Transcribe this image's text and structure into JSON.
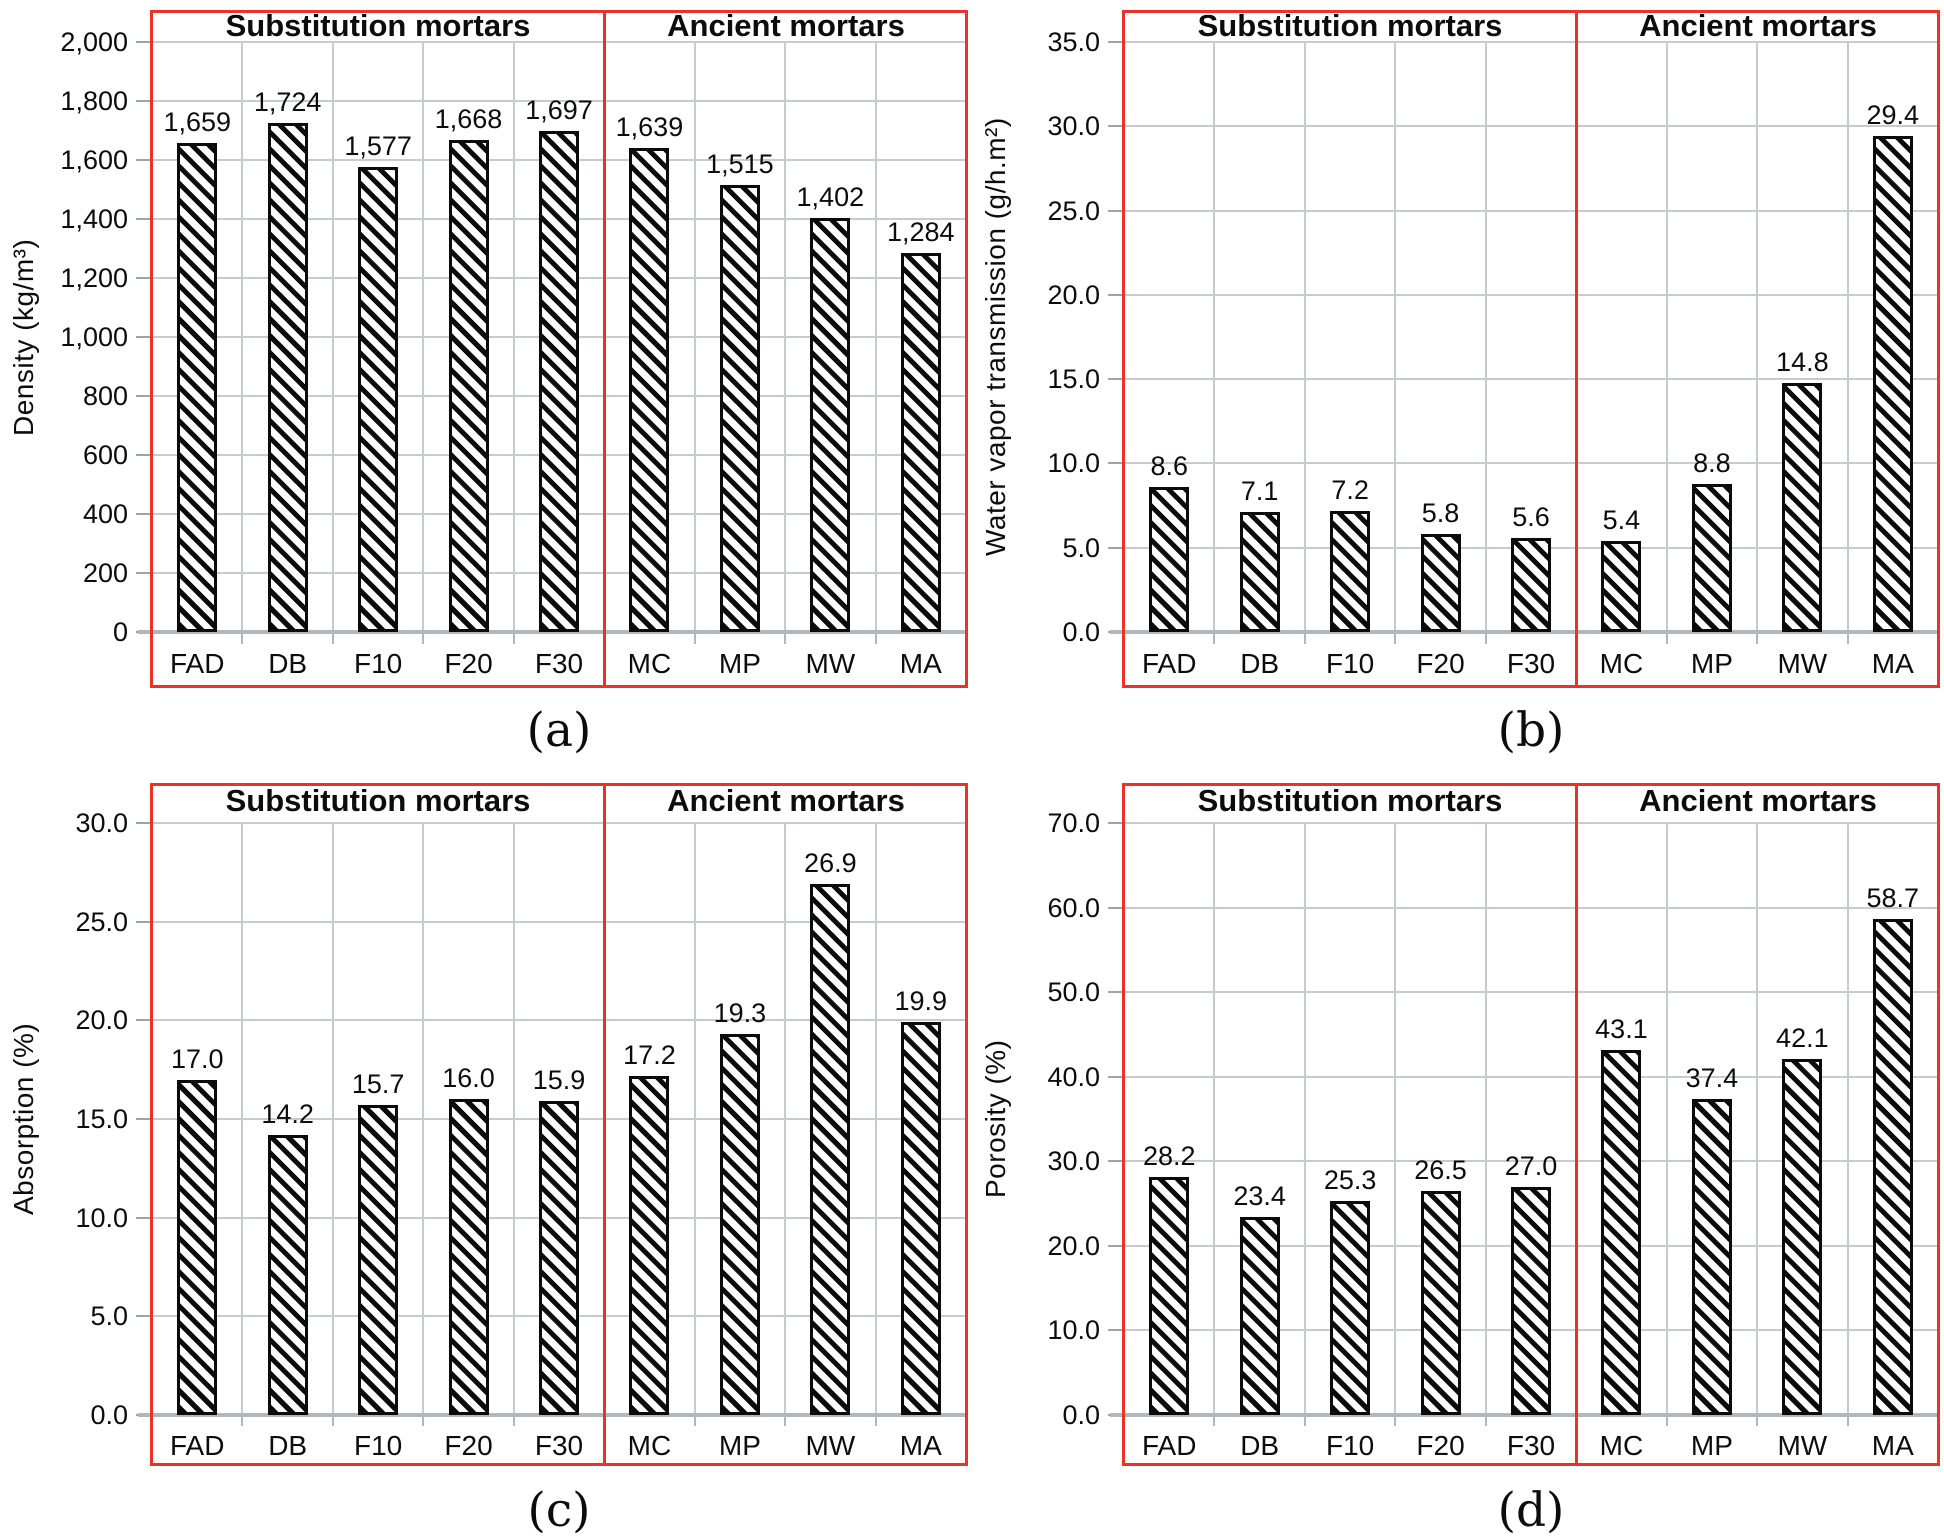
{
  "sections": {
    "substitution": "Substitution mortars",
    "ancient": "Ancient mortars"
  },
  "colors": {
    "frame_red": "#ea3227",
    "grid": "#c3ccd1",
    "axis": "#aeb8be",
    "bar_fill": "#ffffff",
    "bar_hatch": "#0b0b0b"
  },
  "chart_data": [
    {
      "id": "a",
      "type": "bar",
      "caption": "(a)",
      "ylabel": "Density (kg/m³)",
      "ylim": [
        0,
        2000
      ],
      "ytick_step": 200,
      "ytick_labels": [
        "0",
        "200",
        "400",
        "600",
        "800",
        "1,000",
        "1,200",
        "1,400",
        "1,600",
        "1,800",
        "2,000"
      ],
      "grid": true,
      "legend_position": "none",
      "group_labels": [
        "Substitution mortars",
        "Ancient mortars"
      ],
      "split_after": 5,
      "categories": [
        "FAD",
        "DB",
        "F10",
        "F20",
        "F30",
        "MC",
        "MP",
        "MW",
        "MA"
      ],
      "values": [
        1659,
        1724,
        1577,
        1668,
        1697,
        1639,
        1515,
        1402,
        1284
      ],
      "value_labels": [
        "1,659",
        "1,724",
        "1,577",
        "1,668",
        "1,697",
        "1,639",
        "1,515",
        "1,402",
        "1,284"
      ]
    },
    {
      "id": "b",
      "type": "bar",
      "caption": "(b)",
      "ylabel": "Water vapor transmission (g/h.m²)",
      "ylim": [
        0,
        35
      ],
      "ytick_step": 5,
      "ytick_labels": [
        "0.0",
        "5.0",
        "10.0",
        "15.0",
        "20.0",
        "25.0",
        "30.0",
        "35.0"
      ],
      "grid": true,
      "legend_position": "none",
      "group_labels": [
        "Substitution mortars",
        "Ancient mortars"
      ],
      "split_after": 5,
      "categories": [
        "FAD",
        "DB",
        "F10",
        "F20",
        "F30",
        "MC",
        "MP",
        "MW",
        "MA"
      ],
      "values": [
        8.6,
        7.1,
        7.2,
        5.8,
        5.6,
        5.4,
        8.8,
        14.8,
        29.4
      ],
      "value_labels": [
        "8.6",
        "7.1",
        "7.2",
        "5.8",
        "5.6",
        "5.4",
        "8.8",
        "14.8",
        "29.4"
      ]
    },
    {
      "id": "c",
      "type": "bar",
      "caption": "(c)",
      "ylabel": "Absorption (%)",
      "ylim": [
        0,
        30
      ],
      "ytick_step": 5,
      "ytick_labels": [
        "0.0",
        "5.0",
        "10.0",
        "15.0",
        "20.0",
        "25.0",
        "30.0"
      ],
      "grid": true,
      "legend_position": "none",
      "group_labels": [
        "Substitution mortars",
        "Ancient mortars"
      ],
      "split_after": 5,
      "categories": [
        "FAD",
        "DB",
        "F10",
        "F20",
        "F30",
        "MC",
        "MP",
        "MW",
        "MA"
      ],
      "values": [
        17.0,
        14.2,
        15.7,
        16.0,
        15.9,
        17.2,
        19.3,
        26.9,
        19.9
      ],
      "value_labels": [
        "17.0",
        "14.2",
        "15.7",
        "16.0",
        "15.9",
        "17.2",
        "19.3",
        "26.9",
        "19.9"
      ]
    },
    {
      "id": "d",
      "type": "bar",
      "caption": "(d)",
      "ylabel": "Porosity (%)",
      "ylim": [
        0,
        70
      ],
      "ytick_step": 10,
      "ytick_labels": [
        "0.0",
        "10.0",
        "20.0",
        "30.0",
        "40.0",
        "50.0",
        "60.0",
        "70.0"
      ],
      "grid": true,
      "legend_position": "none",
      "group_labels": [
        "Substitution mortars",
        "Ancient mortars"
      ],
      "split_after": 5,
      "categories": [
        "FAD",
        "DB",
        "F10",
        "F20",
        "F30",
        "MC",
        "MP",
        "MW",
        "MA"
      ],
      "values": [
        28.2,
        23.4,
        25.3,
        26.5,
        27.0,
        43.1,
        37.4,
        42.1,
        58.7
      ],
      "value_labels": [
        "28.2",
        "23.4",
        "25.3",
        "26.5",
        "27.0",
        "43.1",
        "37.4",
        "42.1",
        "58.7"
      ]
    }
  ]
}
